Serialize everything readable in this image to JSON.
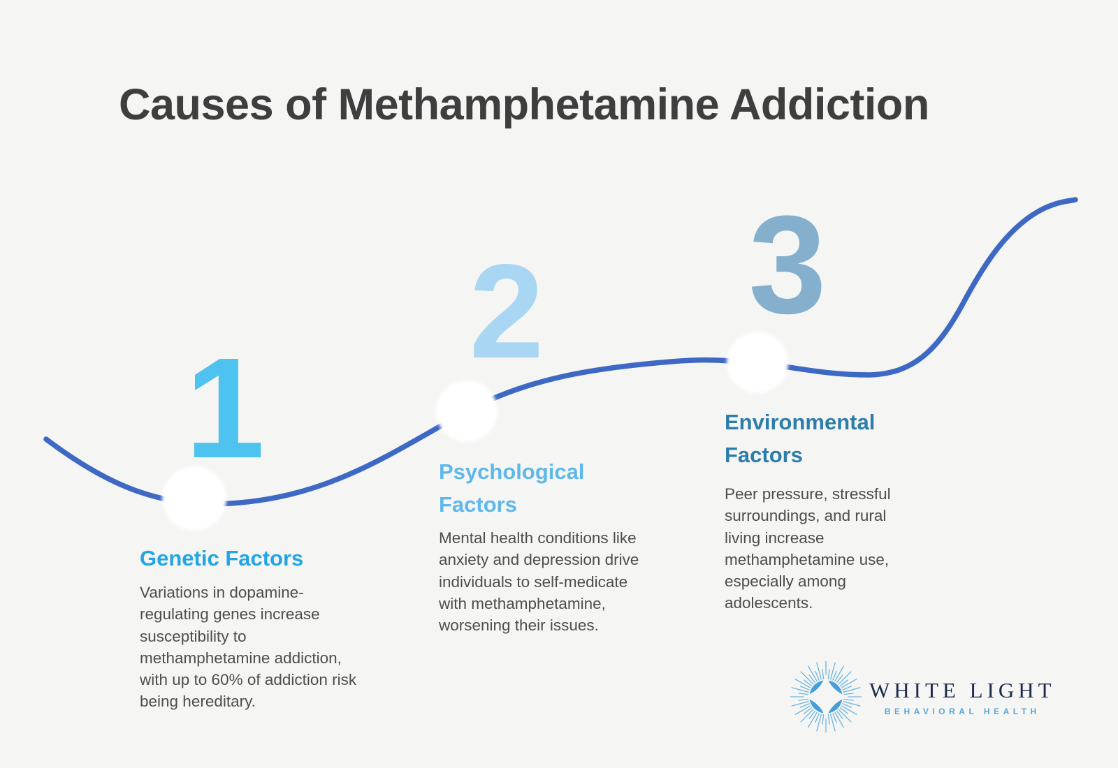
{
  "title": "Causes of Methamphetamine Addiction",
  "steps": [
    {
      "number": "1",
      "heading": "Genetic Factors",
      "body": "Variations in dopamine-regulating genes increase susceptibility to methamphetamine addiction, with up to 60% of addiction risk being hereditary.",
      "number_color": "#4ec3f0",
      "heading_color": "#22a5e3"
    },
    {
      "number": "2",
      "heading": "Psychological Factors",
      "body": "Mental health conditions like anxiety and depression drive individuals to self-medicate with methamphetamine, worsening their issues.",
      "number_color": "#a9d6f3",
      "heading_color": "#5fb8ea"
    },
    {
      "number": "3",
      "heading": "Environmental Factors",
      "body": "Peer pressure, stressful surroundings, and rural living increase methamphetamine use, especially among adolescents.",
      "number_color": "#84afcd",
      "heading_color": "#2d7dab"
    }
  ],
  "logo": {
    "name": "WHITE LIGHT",
    "subtitle": "BEHAVIORAL HEALTH",
    "icon": "starburst-icon",
    "name_color": "#1c2b4a",
    "subtitle_color": "#58a7d8",
    "icon_color": "#459fd6"
  },
  "colors": {
    "background": "#f5f5f3",
    "curve": "#3d68c4",
    "node": "#ffffff",
    "title_text": "#3e3e3e",
    "body_text": "#4d4d4d"
  }
}
